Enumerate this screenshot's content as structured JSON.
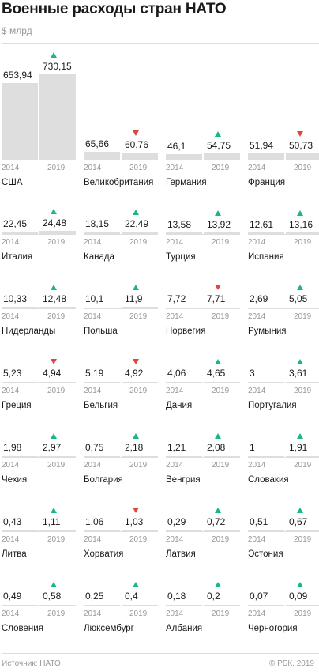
{
  "title": "Военные расходы стран НАТО",
  "unit": "$ млрд",
  "footer": {
    "source": "Источник: НАТО",
    "copyright": "© РБК, 2019"
  },
  "colors": {
    "bar": "#dedede",
    "up": "#1ab87e",
    "down": "#e0463b"
  },
  "chart_data": {
    "type": "bar",
    "title": "Военные расходы стран НАТО",
    "ylabel": "$ млрд",
    "categories": [
      "2014",
      "2019"
    ],
    "countries": [
      {
        "name": "США",
        "v2014": "653,94",
        "v2019": "730,15",
        "trend": "up",
        "y2014": "2014",
        "y2019": "2019"
      },
      {
        "name": "Великобритания",
        "v2014": "65,66",
        "v2019": "60,76",
        "trend": "down",
        "y2014": "2014",
        "y2019": "2019"
      },
      {
        "name": "Германия",
        "v2014": "46,1",
        "v2019": "54,75",
        "trend": "up",
        "y2014": "2014",
        "y2019": "2019"
      },
      {
        "name": "Франция",
        "v2014": "51,94",
        "v2019": "50,73",
        "trend": "down",
        "y2014": "2014",
        "y2019": "2019"
      },
      {
        "name": "Италия",
        "v2014": "22,45",
        "v2019": "24,48",
        "trend": "up",
        "y2014": "2014",
        "y2019": "2019"
      },
      {
        "name": "Канада",
        "v2014": "18,15",
        "v2019": "22,49",
        "trend": "up",
        "y2014": "2014",
        "y2019": "2019"
      },
      {
        "name": "Турция",
        "v2014": "13,58",
        "v2019": "13,92",
        "trend": "up",
        "y2014": "2014",
        "y2019": "2019"
      },
      {
        "name": "Испания",
        "v2014": "12,61",
        "v2019": "13,16",
        "trend": "up",
        "y2014": "2014",
        "y2019": "2019"
      },
      {
        "name": "Нидерланды",
        "v2014": "10,33",
        "v2019": "12,48",
        "trend": "up",
        "y2014": "2014",
        "y2019": "2019"
      },
      {
        "name": "Польша",
        "v2014": "10,1",
        "v2019": "11,9",
        "trend": "up",
        "y2014": "2014",
        "y2019": "2019"
      },
      {
        "name": "Норвегия",
        "v2014": "7,72",
        "v2019": "7,71",
        "trend": "down",
        "y2014": "2014",
        "y2019": "2019"
      },
      {
        "name": "Румыния",
        "v2014": "2,69",
        "v2019": "5,05",
        "trend": "up",
        "y2014": "2014",
        "y2019": "2019"
      },
      {
        "name": "Греция",
        "v2014": "5,23",
        "v2019": "4,94",
        "trend": "down",
        "y2014": "2014",
        "y2019": "2019"
      },
      {
        "name": "Бельгия",
        "v2014": "5,19",
        "v2019": "4,92",
        "trend": "down",
        "y2014": "2014",
        "y2019": "2019"
      },
      {
        "name": "Дания",
        "v2014": "4,06",
        "v2019": "4,65",
        "trend": "up",
        "y2014": "2014",
        "y2019": "2019"
      },
      {
        "name": "Португалия",
        "v2014": "3",
        "v2019": "3,61",
        "trend": "up",
        "y2014": "2014",
        "y2019": "2019"
      },
      {
        "name": "Чехия",
        "v2014": "1,98",
        "v2019": "2,97",
        "trend": "up",
        "y2014": "2014",
        "y2019": "2019"
      },
      {
        "name": "Болгария",
        "v2014": "0,75",
        "v2019": "2,18",
        "trend": "up",
        "y2014": "2014",
        "y2019": "2019"
      },
      {
        "name": "Венгрия",
        "v2014": "1,21",
        "v2019": "2,08",
        "trend": "up",
        "y2014": "2014",
        "y2019": "2019"
      },
      {
        "name": "Словакия",
        "v2014": "1",
        "v2019": "1,91",
        "trend": "up",
        "y2014": "2014",
        "y2019": "2019"
      },
      {
        "name": "Литва",
        "v2014": "0,43",
        "v2019": "1,11",
        "trend": "up",
        "y2014": "2014",
        "y2019": "2019"
      },
      {
        "name": "Хорватия",
        "v2014": "1,06",
        "v2019": "1,03",
        "trend": "down",
        "y2014": "2014",
        "y2019": "2019"
      },
      {
        "name": "Латвия",
        "v2014": "0,29",
        "v2019": "0,72",
        "trend": "up",
        "y2014": "2014",
        "y2019": "2019"
      },
      {
        "name": "Эстония",
        "v2014": "0,51",
        "v2019": "0,67",
        "trend": "up",
        "y2014": "2014",
        "y2019": "2019"
      },
      {
        "name": "Словения",
        "v2014": "0,49",
        "v2019": "0,58",
        "trend": "up",
        "y2014": "2014",
        "y2019": "2019"
      },
      {
        "name": "Люксембург",
        "v2014": "0,25",
        "v2019": "0,4",
        "trend": "up",
        "y2014": "2014",
        "y2019": "2019"
      },
      {
        "name": "Албания",
        "v2014": "0,18",
        "v2019": "0,2",
        "trend": "up",
        "y2014": "2014",
        "y2019": "2019"
      },
      {
        "name": "Черногория",
        "v2014": "0,07",
        "v2019": "0,09",
        "trend": "up",
        "y2014": "2014",
        "y2019": "2019"
      }
    ]
  }
}
